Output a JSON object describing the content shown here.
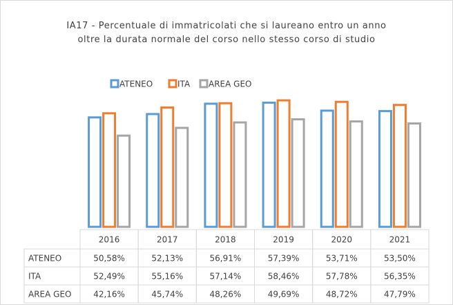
{
  "chart_data": {
    "type": "bar",
    "title": "IA17 - Percentuale di immatricolati che si laureano entro un anno oltre la durata normale del corso nello stesso corso di studio",
    "categories": [
      "2016",
      "2017",
      "2018",
      "2019",
      "2020",
      "2021"
    ],
    "series": [
      {
        "name": "ATENEO",
        "color": "#5b9bd5",
        "values": [
          50.58,
          52.13,
          56.91,
          57.39,
          53.71,
          53.5
        ],
        "value_labels": [
          "50,58%",
          "52,13%",
          "56,91%",
          "57,39%",
          "53,71%",
          "53,50%"
        ]
      },
      {
        "name": "ITA",
        "color": "#ed7d31",
        "values": [
          52.49,
          55.16,
          57.14,
          58.46,
          57.78,
          56.35
        ],
        "value_labels": [
          "52,49%",
          "55,16%",
          "57,14%",
          "58,46%",
          "57,78%",
          "56,35%"
        ]
      },
      {
        "name": "AREA GEO",
        "color": "#a5a5a5",
        "values": [
          42.16,
          45.74,
          48.26,
          49.69,
          48.72,
          47.79
        ],
        "value_labels": [
          "42,16%",
          "45,74%",
          "48,26%",
          "49,69%",
          "48,72%",
          "47,79%"
        ]
      }
    ],
    "ylim": [
      0,
      70
    ]
  }
}
